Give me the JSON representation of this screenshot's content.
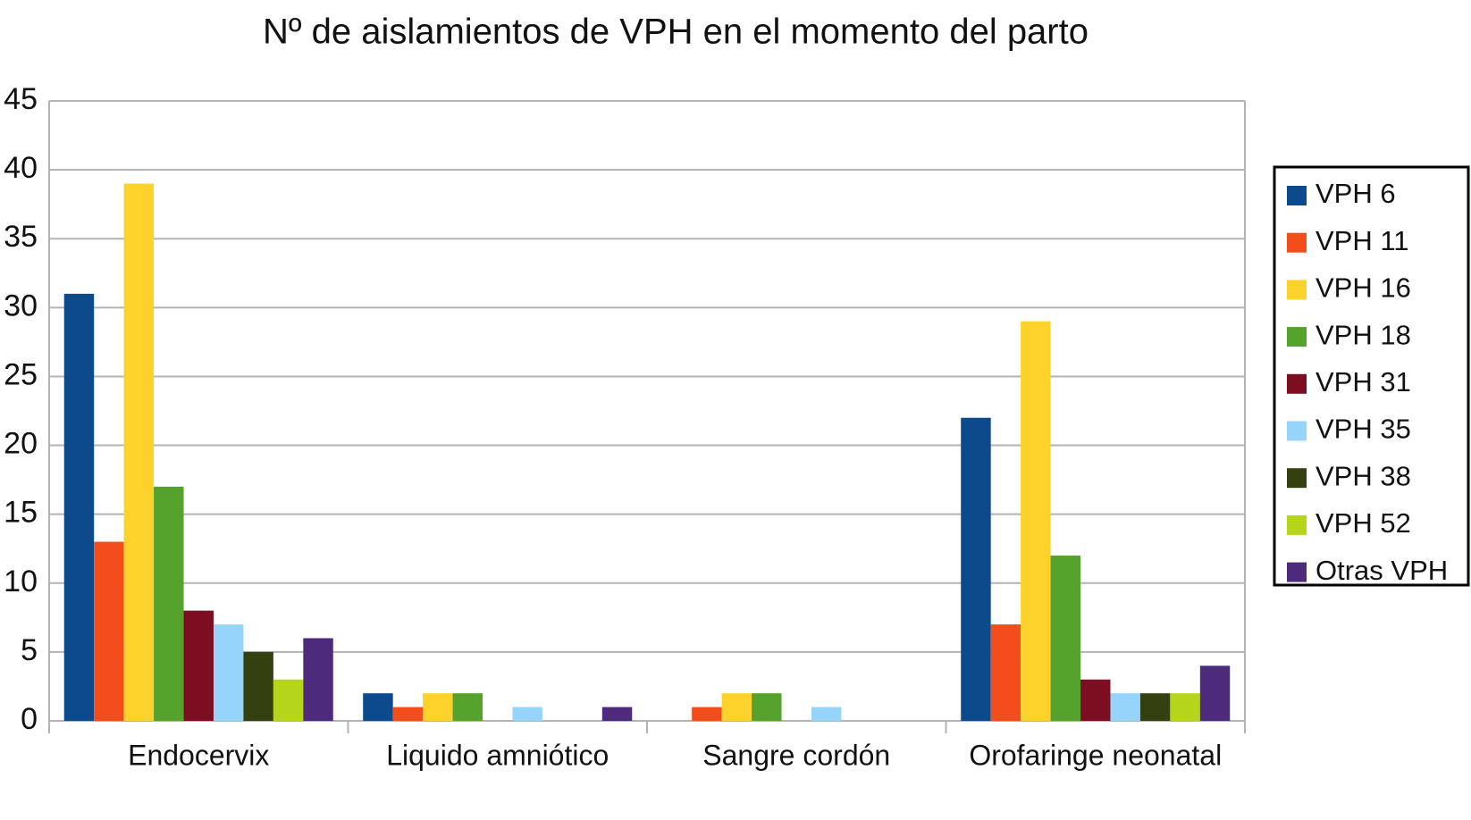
{
  "chart_data": {
    "type": "bar",
    "title": "Nº de aislamientos de VPH en el momento del parto",
    "categories": [
      "Endocervix",
      "Liquido amniótico",
      "Sangre cordón",
      "Orofaringe neonatal"
    ],
    "series": [
      {
        "name": "VPH 6",
        "color": "#0d4a8c",
        "values": [
          31,
          2,
          0,
          22
        ]
      },
      {
        "name": "VPH 11",
        "color": "#f24d1b",
        "values": [
          13,
          1,
          1,
          7
        ]
      },
      {
        "name": "VPH 16",
        "color": "#fdd22a",
        "values": [
          39,
          2,
          2,
          29
        ]
      },
      {
        "name": "VPH 18",
        "color": "#55a22d",
        "values": [
          17,
          2,
          2,
          12
        ]
      },
      {
        "name": "VPH 31",
        "color": "#7d0e22",
        "values": [
          8,
          0,
          0,
          3
        ]
      },
      {
        "name": "VPH 35",
        "color": "#96d4fb",
        "values": [
          7,
          1,
          1,
          2
        ]
      },
      {
        "name": "VPH 38",
        "color": "#33400f",
        "values": [
          5,
          0,
          0,
          2
        ]
      },
      {
        "name": "VPH 52",
        "color": "#b4d51a",
        "values": [
          3,
          0,
          0,
          2
        ]
      },
      {
        "name": "Otras VPH",
        "color": "#4e2a7c",
        "values": [
          6,
          1,
          0,
          4
        ]
      }
    ],
    "ylim": [
      0,
      45
    ],
    "yticks": [
      0,
      5,
      10,
      15,
      20,
      25,
      30,
      35,
      40,
      45
    ],
    "grid": true,
    "legend": "right"
  }
}
